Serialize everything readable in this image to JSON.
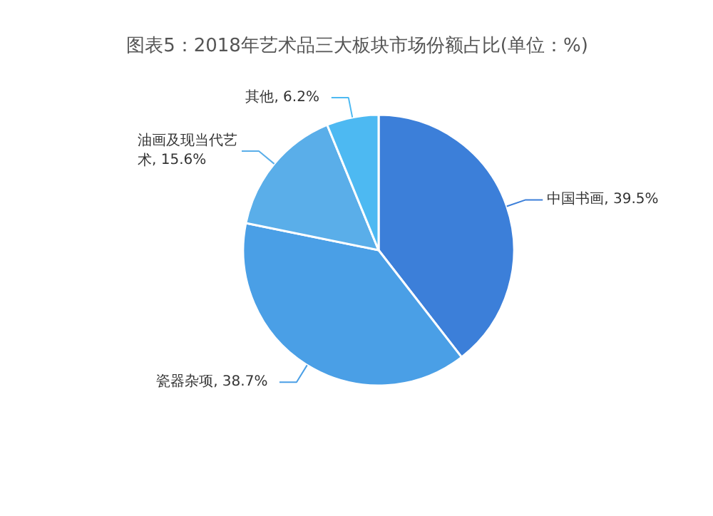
{
  "chart_data": {
    "type": "pie",
    "title": "图表5：2018年艺术品三大板块市场份额占比(单位：%)",
    "categories": [
      "中国书画",
      "瓷器杂项",
      "油画及现当代艺术",
      "其他"
    ],
    "values": [
      39.5,
      38.7,
      15.6,
      6.2
    ],
    "value_labels": [
      ", 39.5%",
      ", 38.7%",
      ", 15.6%",
      ", 6.2%"
    ],
    "colors": [
      "#3c7fd9",
      "#4a9fe6",
      "#5aaee9",
      "#4db9f2"
    ]
  }
}
